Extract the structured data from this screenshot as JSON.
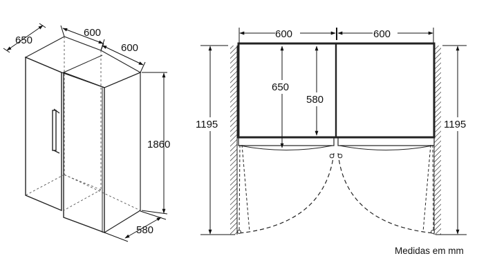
{
  "isometric_view": {
    "depth_label": "650",
    "width_left_label": "600",
    "width_right_label": "600",
    "height_label": "1860",
    "bottom_depth_label": "580"
  },
  "top_view": {
    "left_width_label": "600",
    "right_width_label": "600",
    "inner_depth_left_label": "650",
    "inner_depth_right_label": "580",
    "left_total_depth_label": "1195",
    "right_total_depth_label": "1195"
  },
  "caption": "Medidas em mm"
}
